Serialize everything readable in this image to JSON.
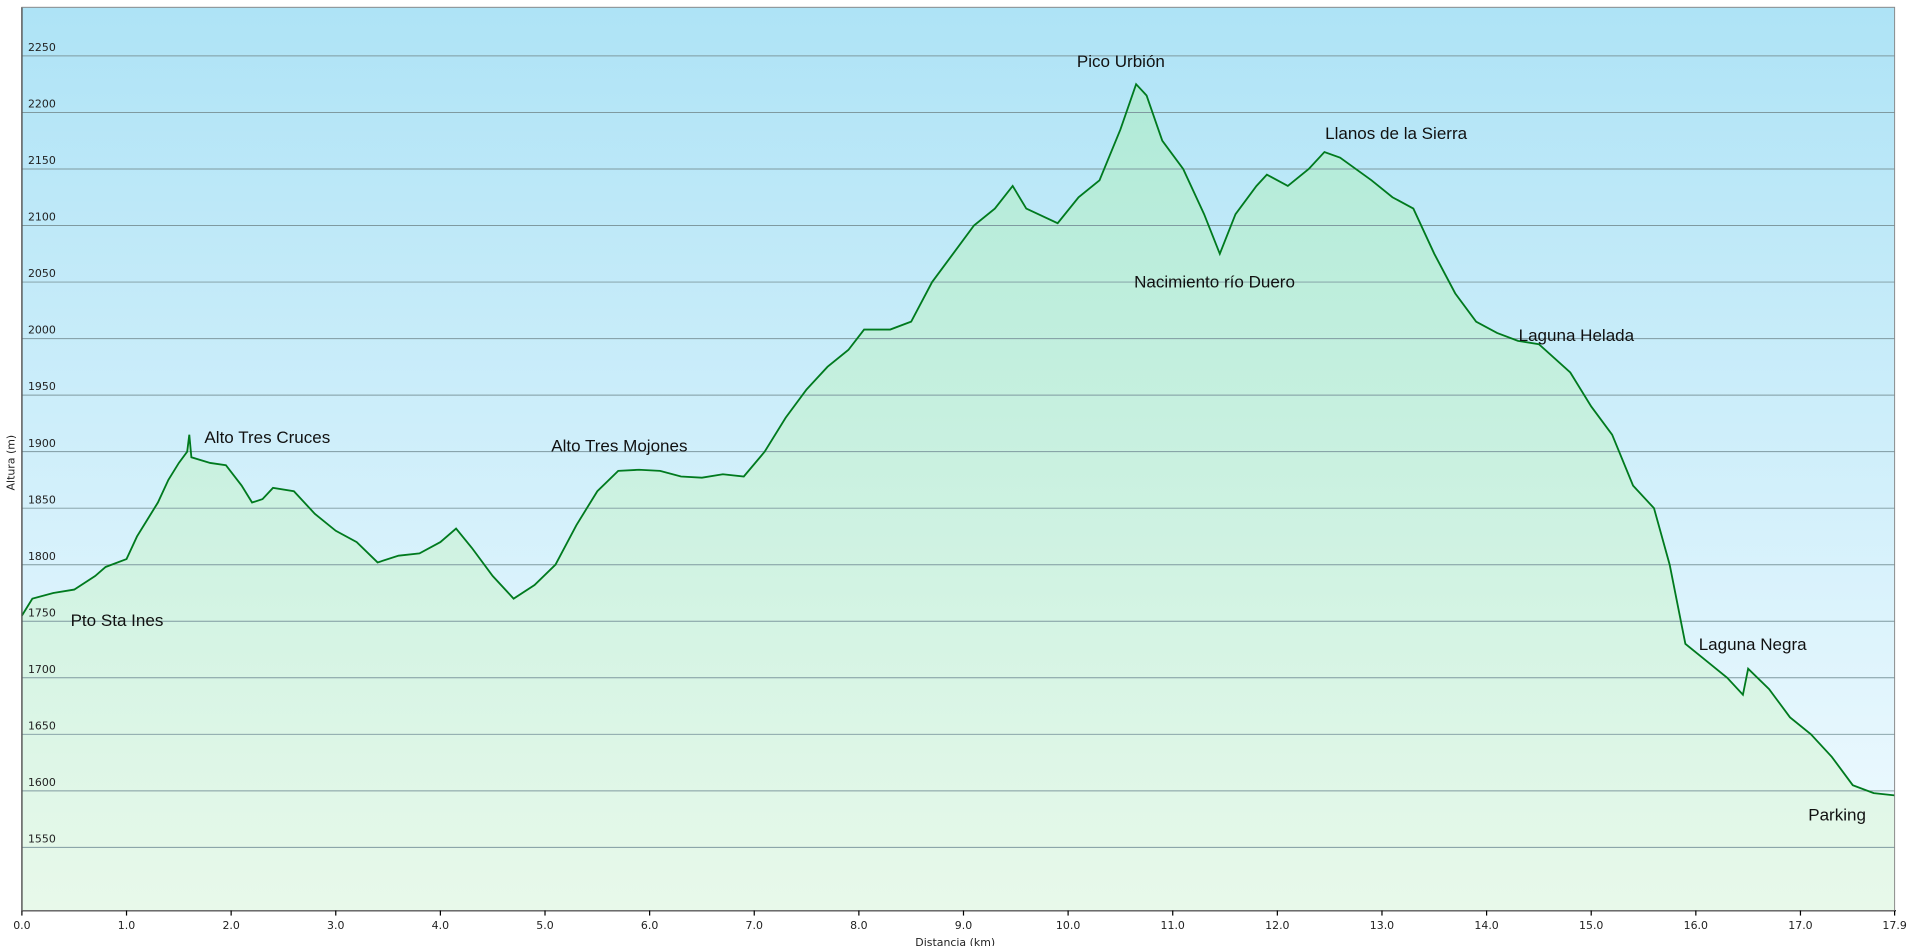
{
  "chart_data": {
    "type": "area",
    "y_label": "Altura (m)",
    "x_label": "Distancia (km)",
    "color": "#007a1e",
    "fill_top": "#b0ead8",
    "fill_bottom": "#e8f9ea",
    "bg_top": "#aee3f6",
    "bg_bottom": "#f2fbff",
    "grid": true,
    "xlim": [
      0,
      17.9
    ],
    "ylim": [
      1494,
      2293
    ],
    "xticks": [
      {
        "value": 0,
        "label": "0.0"
      },
      {
        "value": 1,
        "label": "1.0"
      },
      {
        "value": 2,
        "label": "2.0"
      },
      {
        "value": 3,
        "label": "3.0"
      },
      {
        "value": 4,
        "label": "4.0"
      },
      {
        "value": 5,
        "label": "5.0"
      },
      {
        "value": 6,
        "label": "6.0"
      },
      {
        "value": 7,
        "label": "7.0"
      },
      {
        "value": 8,
        "label": "8.0"
      },
      {
        "value": 9,
        "label": "9.0"
      },
      {
        "value": 10,
        "label": "10.0"
      },
      {
        "value": 11,
        "label": "11.0"
      },
      {
        "value": 12,
        "label": "12.0"
      },
      {
        "value": 13,
        "label": "13.0"
      },
      {
        "value": 14,
        "label": "14.0"
      },
      {
        "value": 15,
        "label": "15.0"
      },
      {
        "value": 16,
        "label": "16.0"
      },
      {
        "value": 17,
        "label": "17.0"
      },
      17.9
    ],
    "yticks": [
      1550,
      1600,
      1650,
      1700,
      1750,
      1800,
      1850,
      1900,
      1950,
      2000,
      2050,
      2100,
      2150,
      2200,
      2250
    ],
    "annotations": [
      "Pto Sta Ines",
      "Alto Tres Cruces",
      "Alto Tres Mojones",
      "Pico Urbión",
      "Llanos de la Sierra",
      "Nacimiento río Duero",
      "Laguna Helada",
      "Laguna Negra",
      "Parking"
    ],
    "x": [
      0,
      0.1,
      0.3,
      0.5,
      0.7,
      0.8,
      1.0,
      1.1,
      1.2,
      1.3,
      1.4,
      1.5,
      1.58,
      1.6,
      1.62,
      1.8,
      1.95,
      2.1,
      2.2,
      2.3,
      2.4,
      2.6,
      2.8,
      3.0,
      3.2,
      3.4,
      3.6,
      3.8,
      4.0,
      4.15,
      4.3,
      4.5,
      4.7,
      4.9,
      5.1,
      5.3,
      5.5,
      5.7,
      5.9,
      6.1,
      6.3,
      6.5,
      6.7,
      6.9,
      7.1,
      7.3,
      7.5,
      7.7,
      7.9,
      8.05,
      8.3,
      8.5,
      8.7,
      8.9,
      9.1,
      9.3,
      9.47,
      9.6,
      9.9,
      10.1,
      10.3,
      10.5,
      10.65,
      10.75,
      10.9,
      11.1,
      11.3,
      11.45,
      11.6,
      11.8,
      11.9,
      12.1,
      12.3,
      12.45,
      12.6,
      12.9,
      13.1,
      13.3,
      13.5,
      13.7,
      13.9,
      14.1,
      14.3,
      14.5,
      14.8,
      15.0,
      15.2,
      15.4,
      15.6,
      15.75,
      15.9,
      16.1,
      16.3,
      16.45,
      16.5,
      16.7,
      16.9,
      17.1,
      17.3,
      17.5,
      17.7,
      17.9
    ],
    "values": [
      1755,
      1770,
      1775,
      1778,
      1790,
      1798,
      1805,
      1825,
      1840,
      1855,
      1875,
      1890,
      1900,
      1915,
      1895,
      1890,
      1888,
      1870,
      1855,
      1858,
      1868,
      1865,
      1845,
      1830,
      1820,
      1802,
      1808,
      1810,
      1820,
      1832,
      1815,
      1790,
      1770,
      1782,
      1800,
      1835,
      1865,
      1883,
      1884,
      1883,
      1878,
      1877,
      1880,
      1878,
      1900,
      1930,
      1955,
      1975,
      1990,
      2008,
      2008,
      2015,
      2050,
      2075,
      2100,
      2115,
      2135,
      2115,
      2102,
      2125,
      2140,
      2185,
      2225,
      2215,
      2175,
      2150,
      2110,
      2075,
      2110,
      2135,
      2145,
      2135,
      2150,
      2165,
      2160,
      2140,
      2125,
      2115,
      2075,
      2040,
      2015,
      2005,
      1998,
      1995,
      1970,
      1940,
      1915,
      1870,
      1850,
      1800,
      1730,
      1715,
      1700,
      1685,
      1708,
      1690,
      1665,
      1650,
      1630,
      1605,
      1598,
      1596
    ]
  }
}
